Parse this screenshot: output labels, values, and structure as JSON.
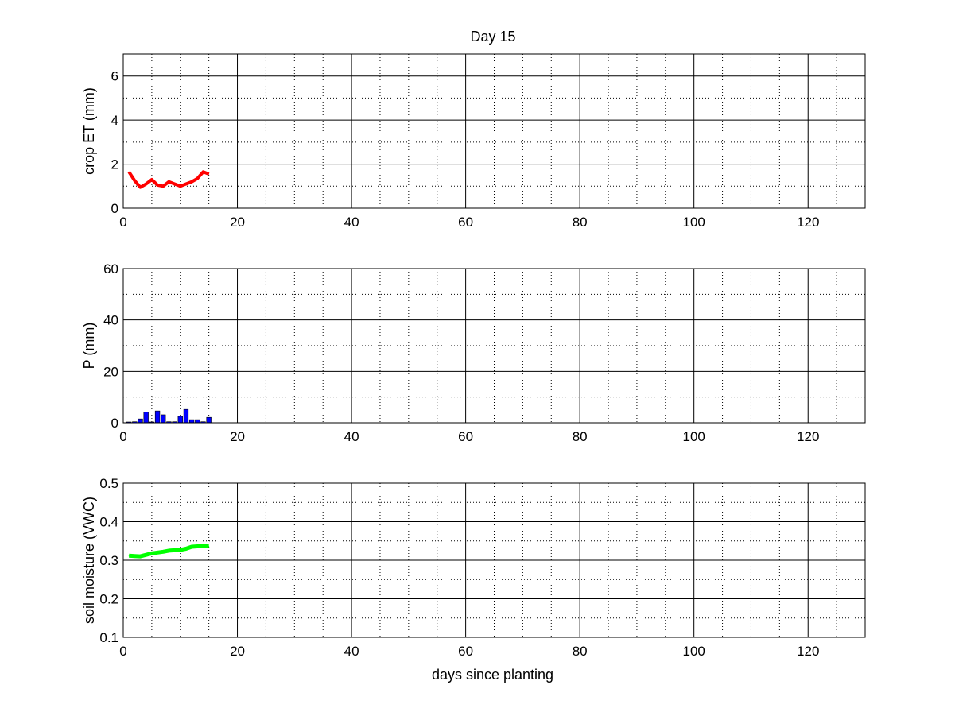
{
  "title": "Day 15",
  "chart_data": [
    {
      "type": "line",
      "xlabel": "",
      "ylabel": "crop ET (mm)",
      "xlim": [
        0,
        130
      ],
      "ylim": [
        0,
        7
      ],
      "xticks": [
        0,
        20,
        40,
        60,
        80,
        100,
        120
      ],
      "yticks": [
        0,
        2,
        4,
        6
      ],
      "grid": true,
      "minor_grid": true,
      "color": "#ff0000",
      "series": [
        {
          "x": [
            1,
            2,
            3,
            4,
            5,
            6,
            7,
            8,
            9,
            10,
            11,
            12,
            13,
            14,
            15
          ],
          "y": [
            1.65,
            1.25,
            0.95,
            1.1,
            1.3,
            1.05,
            1.0,
            1.2,
            1.1,
            1.0,
            1.1,
            1.2,
            1.35,
            1.65,
            1.55
          ]
        }
      ]
    },
    {
      "type": "bar",
      "xlabel": "",
      "ylabel": "P (mm)",
      "xlim": [
        0,
        130
      ],
      "ylim": [
        0,
        60
      ],
      "xticks": [
        0,
        20,
        40,
        60,
        80,
        100,
        120
      ],
      "yticks": [
        0,
        20,
        40,
        60
      ],
      "grid": true,
      "minor_grid": true,
      "color": "#0000ff",
      "series": [
        {
          "x": [
            1,
            2,
            3,
            4,
            5,
            6,
            7,
            8,
            9,
            10,
            11,
            12,
            13,
            14,
            15
          ],
          "y": [
            0,
            0.4,
            1.5,
            4.2,
            0.3,
            4.6,
            3.1,
            0.4,
            0.4,
            2.5,
            5.2,
            1.2,
            1.2,
            0.4,
            2.1
          ]
        }
      ]
    },
    {
      "type": "line",
      "xlabel": "days since planting",
      "ylabel": "soil moisture (VWC)",
      "xlim": [
        0,
        130
      ],
      "ylim": [
        0.1,
        0.5
      ],
      "xticks": [
        0,
        20,
        40,
        60,
        80,
        100,
        120
      ],
      "yticks": [
        0.1,
        0.2,
        0.3,
        0.4,
        0.5
      ],
      "grid": true,
      "minor_grid": true,
      "color": "#00ff00",
      "series": [
        {
          "x": [
            1,
            2,
            3,
            4,
            5,
            6,
            7,
            8,
            9,
            10,
            11,
            12,
            13,
            14,
            15
          ],
          "y": [
            0.312,
            0.311,
            0.31,
            0.314,
            0.318,
            0.32,
            0.322,
            0.325,
            0.326,
            0.327,
            0.33,
            0.335,
            0.336,
            0.336,
            0.336
          ]
        }
      ]
    }
  ]
}
